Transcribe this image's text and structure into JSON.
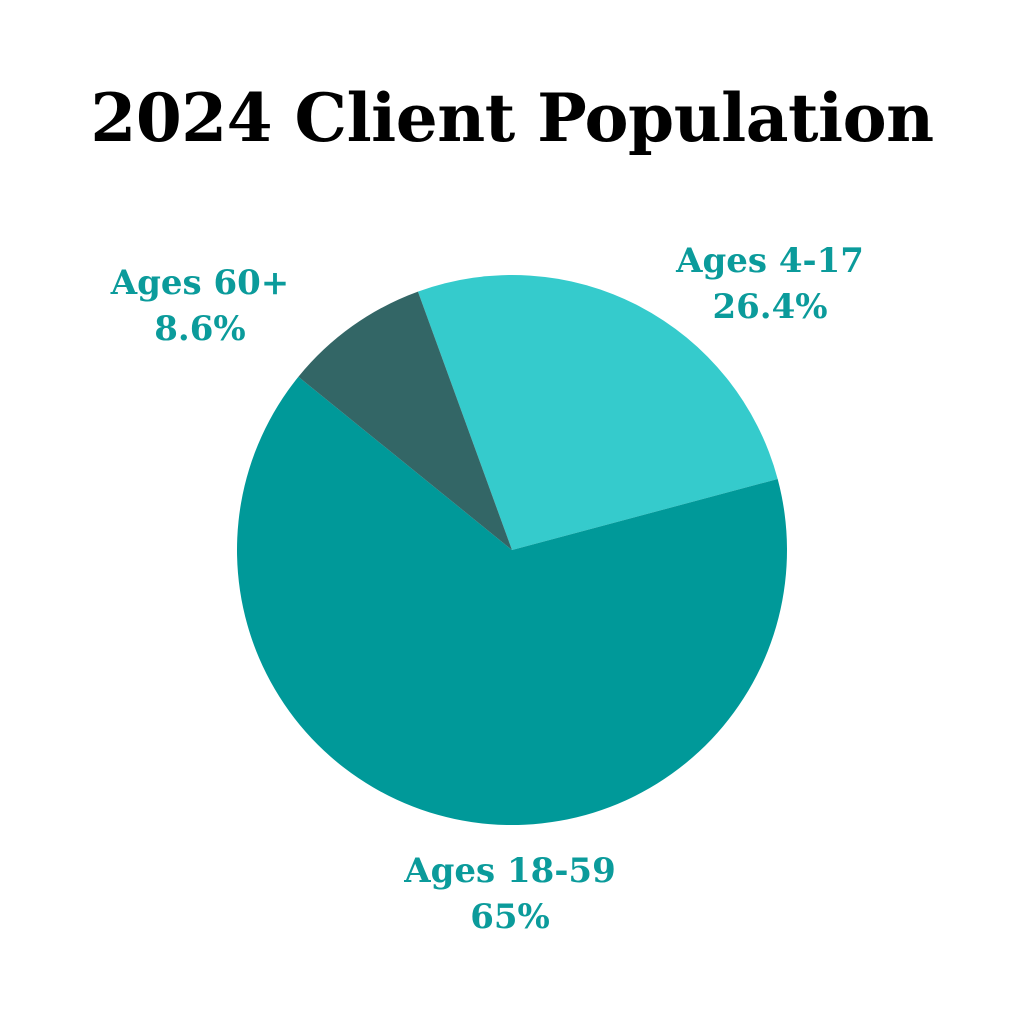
{
  "chart_data": {
    "type": "pie",
    "title": "2024 Client Population",
    "slices": [
      {
        "label": "Ages 4-17",
        "value": 26.4,
        "value_label": "26.4%",
        "color": "#35cbcc"
      },
      {
        "label": "Ages 18-59",
        "value": 65,
        "value_label": "65%",
        "color": "#009999"
      },
      {
        "label": "Ages 60+",
        "value": 8.6,
        "value_label": "8.6%",
        "color": "#336666"
      }
    ],
    "label_color": "#0b9b9b",
    "title_color": "#000000"
  }
}
